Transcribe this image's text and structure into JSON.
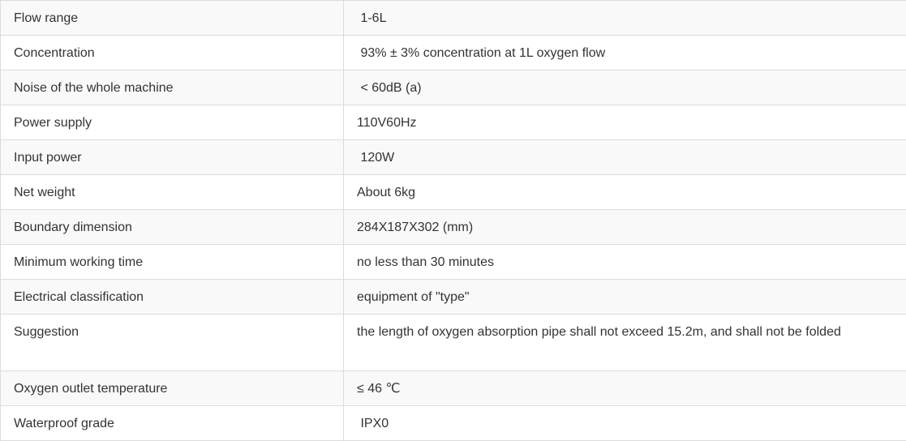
{
  "spec_table": {
    "rows": [
      {
        "label": "Flow range",
        "value": " 1-6L"
      },
      {
        "label": "Concentration",
        "value": " 93% ± 3% concentration at 1L oxygen flow"
      },
      {
        "label": "Noise of the whole machine",
        "value": " < 60dB (a)"
      },
      {
        "label": "Power supply",
        "value": "110V60Hz"
      },
      {
        "label": "Input power",
        "value": " 120W"
      },
      {
        "label": "Net weight",
        "value": "About 6kg"
      },
      {
        "label": "Boundary dimension",
        "value": "284X187X302 (mm)"
      },
      {
        "label": "Minimum working time",
        "value": "no less than 30 minutes"
      },
      {
        "label": "Electrical classification",
        "value": "equipment of \"type\""
      },
      {
        "label": "Suggestion",
        "value": "the length of oxygen absorption pipe shall not exceed 15.2m, and shall not be folded"
      },
      {
        "label": "Oxygen outlet temperature",
        "value": "≤ 46 ℃"
      },
      {
        "label": "Waterproof grade",
        "value": " IPX0"
      }
    ]
  }
}
